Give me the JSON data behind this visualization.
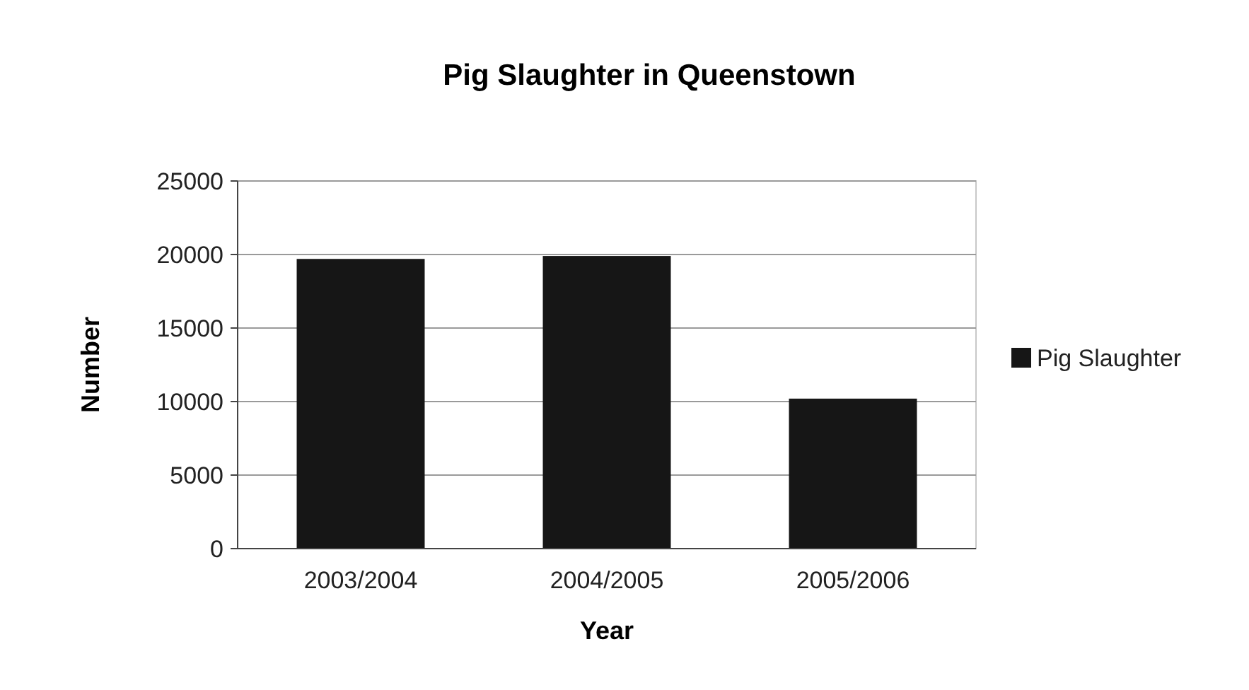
{
  "chart_data": {
    "type": "bar",
    "title": "Pig Slaughter in Queenstown",
    "xlabel": "Year",
    "ylabel": "Number",
    "categories": [
      "2003/2004",
      "2004/2005",
      "2005/2006"
    ],
    "series": [
      {
        "name": "Pig Slaughter",
        "color": "#161616",
        "values": [
          19700,
          19900,
          10200
        ]
      }
    ],
    "ylim": [
      0,
      25000
    ],
    "yticks": [
      0,
      5000,
      10000,
      15000,
      20000,
      25000
    ],
    "grid": "y",
    "legend": "right"
  }
}
